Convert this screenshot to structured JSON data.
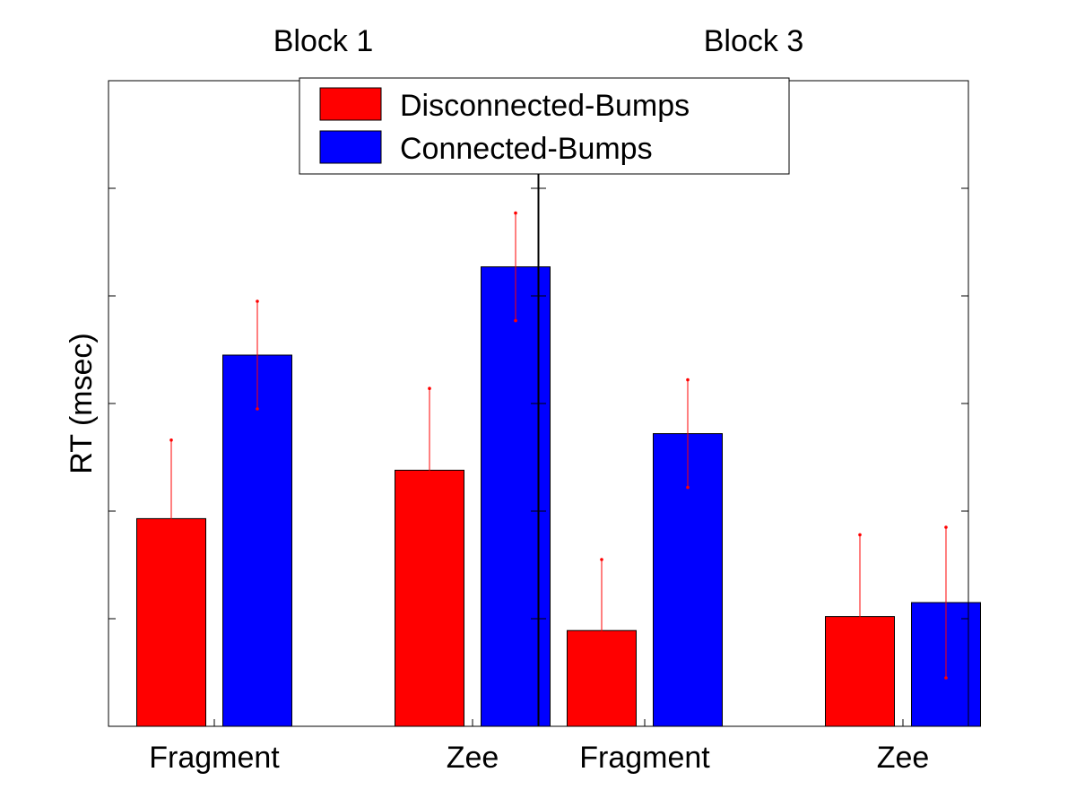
{
  "chart_data": {
    "type": "bar",
    "ylabel": "RT (msec)",
    "ylim": [
      0,
      6
    ],
    "y_ticks_shown": false,
    "legend": {
      "placement": "top-center",
      "entries": [
        {
          "name": "Disconnected-Bumps",
          "color": "#ff0000"
        },
        {
          "name": "Connected-Bumps",
          "color": "#0000ff"
        }
      ]
    },
    "error_bar_color": "#ff0000",
    "panels": [
      {
        "title": "Block 1",
        "categories": [
          "Fragment",
          "Zee"
        ],
        "series": [
          {
            "name": "Disconnected-Bumps",
            "color": "#ff0000",
            "values": [
              1.93,
              2.38
            ],
            "errors": [
              0.73,
              0.76
            ]
          },
          {
            "name": "Connected-Bumps",
            "color": "#0000ff",
            "values": [
              3.45,
              4.27
            ],
            "errors": [
              0.5,
              0.5
            ]
          }
        ]
      },
      {
        "title": "Block 3",
        "categories": [
          "Fragment",
          "Zee"
        ],
        "series": [
          {
            "name": "Disconnected-Bumps",
            "color": "#ff0000",
            "values": [
              0.89,
              1.02
            ],
            "errors": [
              0.66,
              0.76
            ]
          },
          {
            "name": "Connected-Bumps",
            "color": "#0000ff",
            "values": [
              2.72,
              1.15
            ],
            "errors": [
              0.5,
              0.7
            ]
          }
        ]
      }
    ]
  }
}
